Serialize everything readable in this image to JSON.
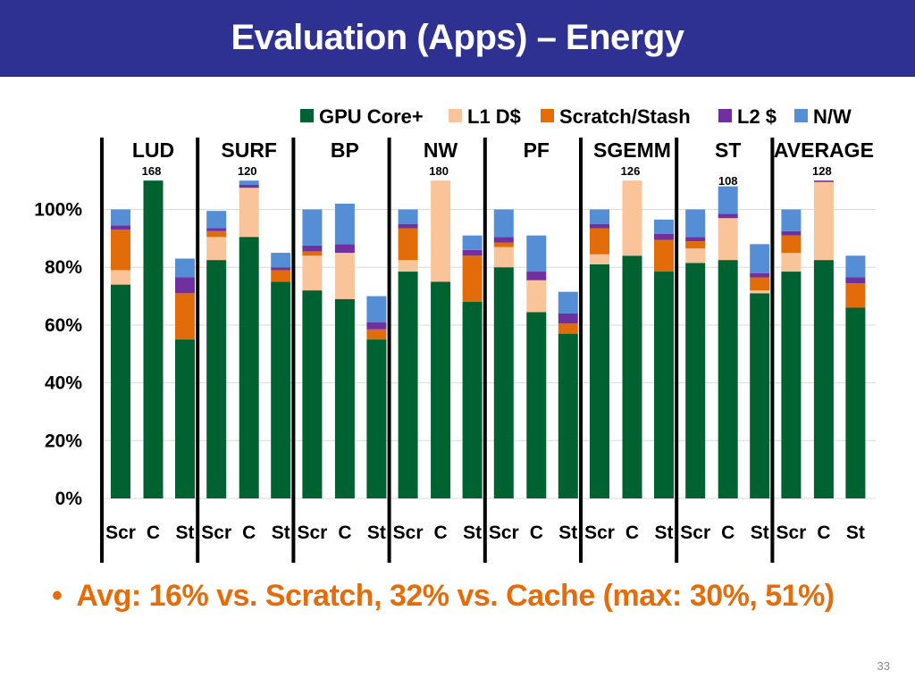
{
  "slide": {
    "title": "Evaluation (Apps) – Energy",
    "bullet": "Avg: 16% vs. Scratch, 32% vs. Cache (max: 30%, 51%)",
    "page_number": "33"
  },
  "chart_data": {
    "type": "bar",
    "stacked": true,
    "ylim": [
      0,
      110
    ],
    "yticks": [
      "0%",
      "20%",
      "40%",
      "60%",
      "80%",
      "100%"
    ],
    "ytick_values": [
      0,
      20,
      40,
      60,
      80,
      100
    ],
    "legend": [
      {
        "name": "GPU Core+",
        "color": "#006131"
      },
      {
        "name": "L1 D$",
        "color": "#f9c49a"
      },
      {
        "name": "Scratch/Stash",
        "color": "#e36c0a"
      },
      {
        "name": "L2 $",
        "color": "#7030a0"
      },
      {
        "name": "N/W",
        "color": "#558ed5"
      }
    ],
    "series_order": [
      "GPU Core+",
      "L1 D$",
      "Scratch/Stash",
      "L2 $",
      "N/W"
    ],
    "groups": [
      {
        "name": "LUD",
        "overflow_label": "168",
        "bars": [
          {
            "label": "Scr",
            "values": [
              74,
              5,
              14,
              1.5,
              5.5
            ]
          },
          {
            "label": "C",
            "values": [
              110,
              0,
              0,
              0,
              0
            ],
            "clipped": true
          },
          {
            "label": "St",
            "values": [
              55,
              0,
              16,
              5.5,
              6.5
            ]
          }
        ]
      },
      {
        "name": "SURF",
        "overflow_label": "120",
        "bars": [
          {
            "label": "Scr",
            "values": [
              82.5,
              8,
              2,
              1,
              6
            ]
          },
          {
            "label": "C",
            "values": [
              90.5,
              17,
              0,
              1,
              1.5
            ],
            "clipped": true
          },
          {
            "label": "St",
            "values": [
              75,
              0,
              4,
              1,
              5
            ]
          }
        ]
      },
      {
        "name": "BP",
        "overflow_label": "",
        "bars": [
          {
            "label": "Scr",
            "values": [
              72,
              12,
              1.5,
              2,
              12.5
            ]
          },
          {
            "label": "C",
            "values": [
              69,
              16,
              0,
              3,
              14
            ]
          },
          {
            "label": "St",
            "values": [
              55,
              0,
              3.5,
              2.5,
              9
            ]
          }
        ]
      },
      {
        "name": "NW",
        "overflow_label": "180",
        "bars": [
          {
            "label": "Scr",
            "values": [
              78.5,
              4,
              11,
              1.5,
              5
            ]
          },
          {
            "label": "C",
            "values": [
              75,
              35,
              0,
              0,
              0
            ],
            "clipped": true
          },
          {
            "label": "St",
            "values": [
              68,
              0,
              16,
              2,
              5
            ]
          }
        ]
      },
      {
        "name": "PF",
        "overflow_label": "",
        "bars": [
          {
            "label": "Scr",
            "values": [
              80,
              7,
              1.5,
              2,
              9.5
            ]
          },
          {
            "label": "C",
            "values": [
              64.5,
              11,
              0,
              3,
              12.5
            ]
          },
          {
            "label": "St",
            "values": [
              57,
              0,
              3.5,
              3.5,
              7.5
            ]
          }
        ]
      },
      {
        "name": "SGEMM",
        "overflow_label": "126",
        "bars": [
          {
            "label": "Scr",
            "values": [
              81,
              3.5,
              9,
              1.5,
              5
            ]
          },
          {
            "label": "C",
            "values": [
              84,
              26,
              0,
              0,
              0
            ],
            "clipped": true
          },
          {
            "label": "St",
            "values": [
              78.5,
              0,
              11,
              2,
              5
            ]
          }
        ]
      },
      {
        "name": "ST",
        "overflow_label": "108",
        "bars": [
          {
            "label": "Scr",
            "values": [
              81.5,
              5,
              2.5,
              1.5,
              9.5
            ]
          },
          {
            "label": "C",
            "values": [
              82.5,
              14.5,
              0,
              1.5,
              9.5
            ]
          },
          {
            "label": "St",
            "values": [
              71,
              1,
              4.5,
              1.5,
              10
            ]
          }
        ]
      },
      {
        "name": "AVERAGE",
        "overflow_label": "128",
        "bars": [
          {
            "label": "Scr",
            "values": [
              78.5,
              6.5,
              6,
              1.5,
              7.5
            ]
          },
          {
            "label": "C",
            "values": [
              82.5,
              27,
              0,
              0.5,
              0
            ],
            "clipped": true
          },
          {
            "label": "St",
            "values": [
              66,
              0,
              8.5,
              2,
              7.5
            ]
          }
        ]
      }
    ]
  }
}
